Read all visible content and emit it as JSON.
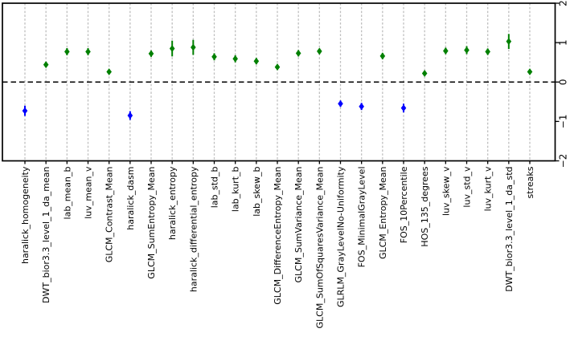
{
  "chart_data": {
    "type": "scatter",
    "title": "",
    "xlabel": "",
    "ylabel": "",
    "ylim": [
      -2,
      2
    ],
    "yticks": [
      {
        "value": 2,
        "label": "2"
      },
      {
        "value": 1,
        "label": "1"
      },
      {
        "value": 0,
        "label": "0"
      },
      {
        "value": -1,
        "label": "−1"
      },
      {
        "value": -2,
        "label": "−2"
      }
    ],
    "y_axis_side": "right",
    "x_label_rotation": 90,
    "grid": "vertical-dashed",
    "zero_line": true,
    "marker": "diamond",
    "categories": [
      "haralick_homogeneity",
      "DWT_bior3.3_level_1_da_mean",
      "lab_mean_b",
      "luv_mean_v",
      "GLCM_Contrast_Mean",
      "haralick_dasm",
      "GLCM_SumEntropy_Mean",
      "haralick_entropy",
      "haralick_differential_entropy",
      "lab_std_b",
      "lab_kurt_b",
      "lab_skew_b",
      "GLCM_DifferenceEntropy_Mean",
      "GLCM_SumVariance_Mean",
      "GLCM_SumOfSquaresVariance_Mean",
      "GLRLM_GrayLevelNo-Uniformity",
      "FOS_MinimalGrayLevel",
      "GLCM_Entropy_Mean",
      "FOS_10Percentile",
      "HOS_135_degrees",
      "luv_skew_v",
      "luv_std_v",
      "luv_kurt_v",
      "DWT_bior3.3_level_1_da_std",
      "streaks"
    ],
    "values": [
      -0.73,
      0.44,
      0.77,
      0.77,
      0.26,
      -0.85,
      0.72,
      0.85,
      0.88,
      0.64,
      0.59,
      0.53,
      0.38,
      0.73,
      0.78,
      -0.55,
      -0.62,
      0.66,
      -0.66,
      0.22,
      0.79,
      0.81,
      0.77,
      1.03,
      0.26
    ],
    "errors": [
      0.13,
      0.07,
      0.09,
      0.09,
      0.06,
      0.11,
      0.08,
      0.2,
      0.19,
      0.09,
      0.09,
      0.08,
      0.06,
      0.08,
      0.07,
      0.08,
      0.09,
      0.08,
      0.11,
      0.06,
      0.08,
      0.1,
      0.08,
      0.19,
      0.06
    ],
    "colors": {
      "positive": "#008000",
      "negative": "#0000ff",
      "grid": "#bfbfbf",
      "zero_line": "#000000",
      "axis": "#000000",
      "background": "#ffffff"
    }
  }
}
